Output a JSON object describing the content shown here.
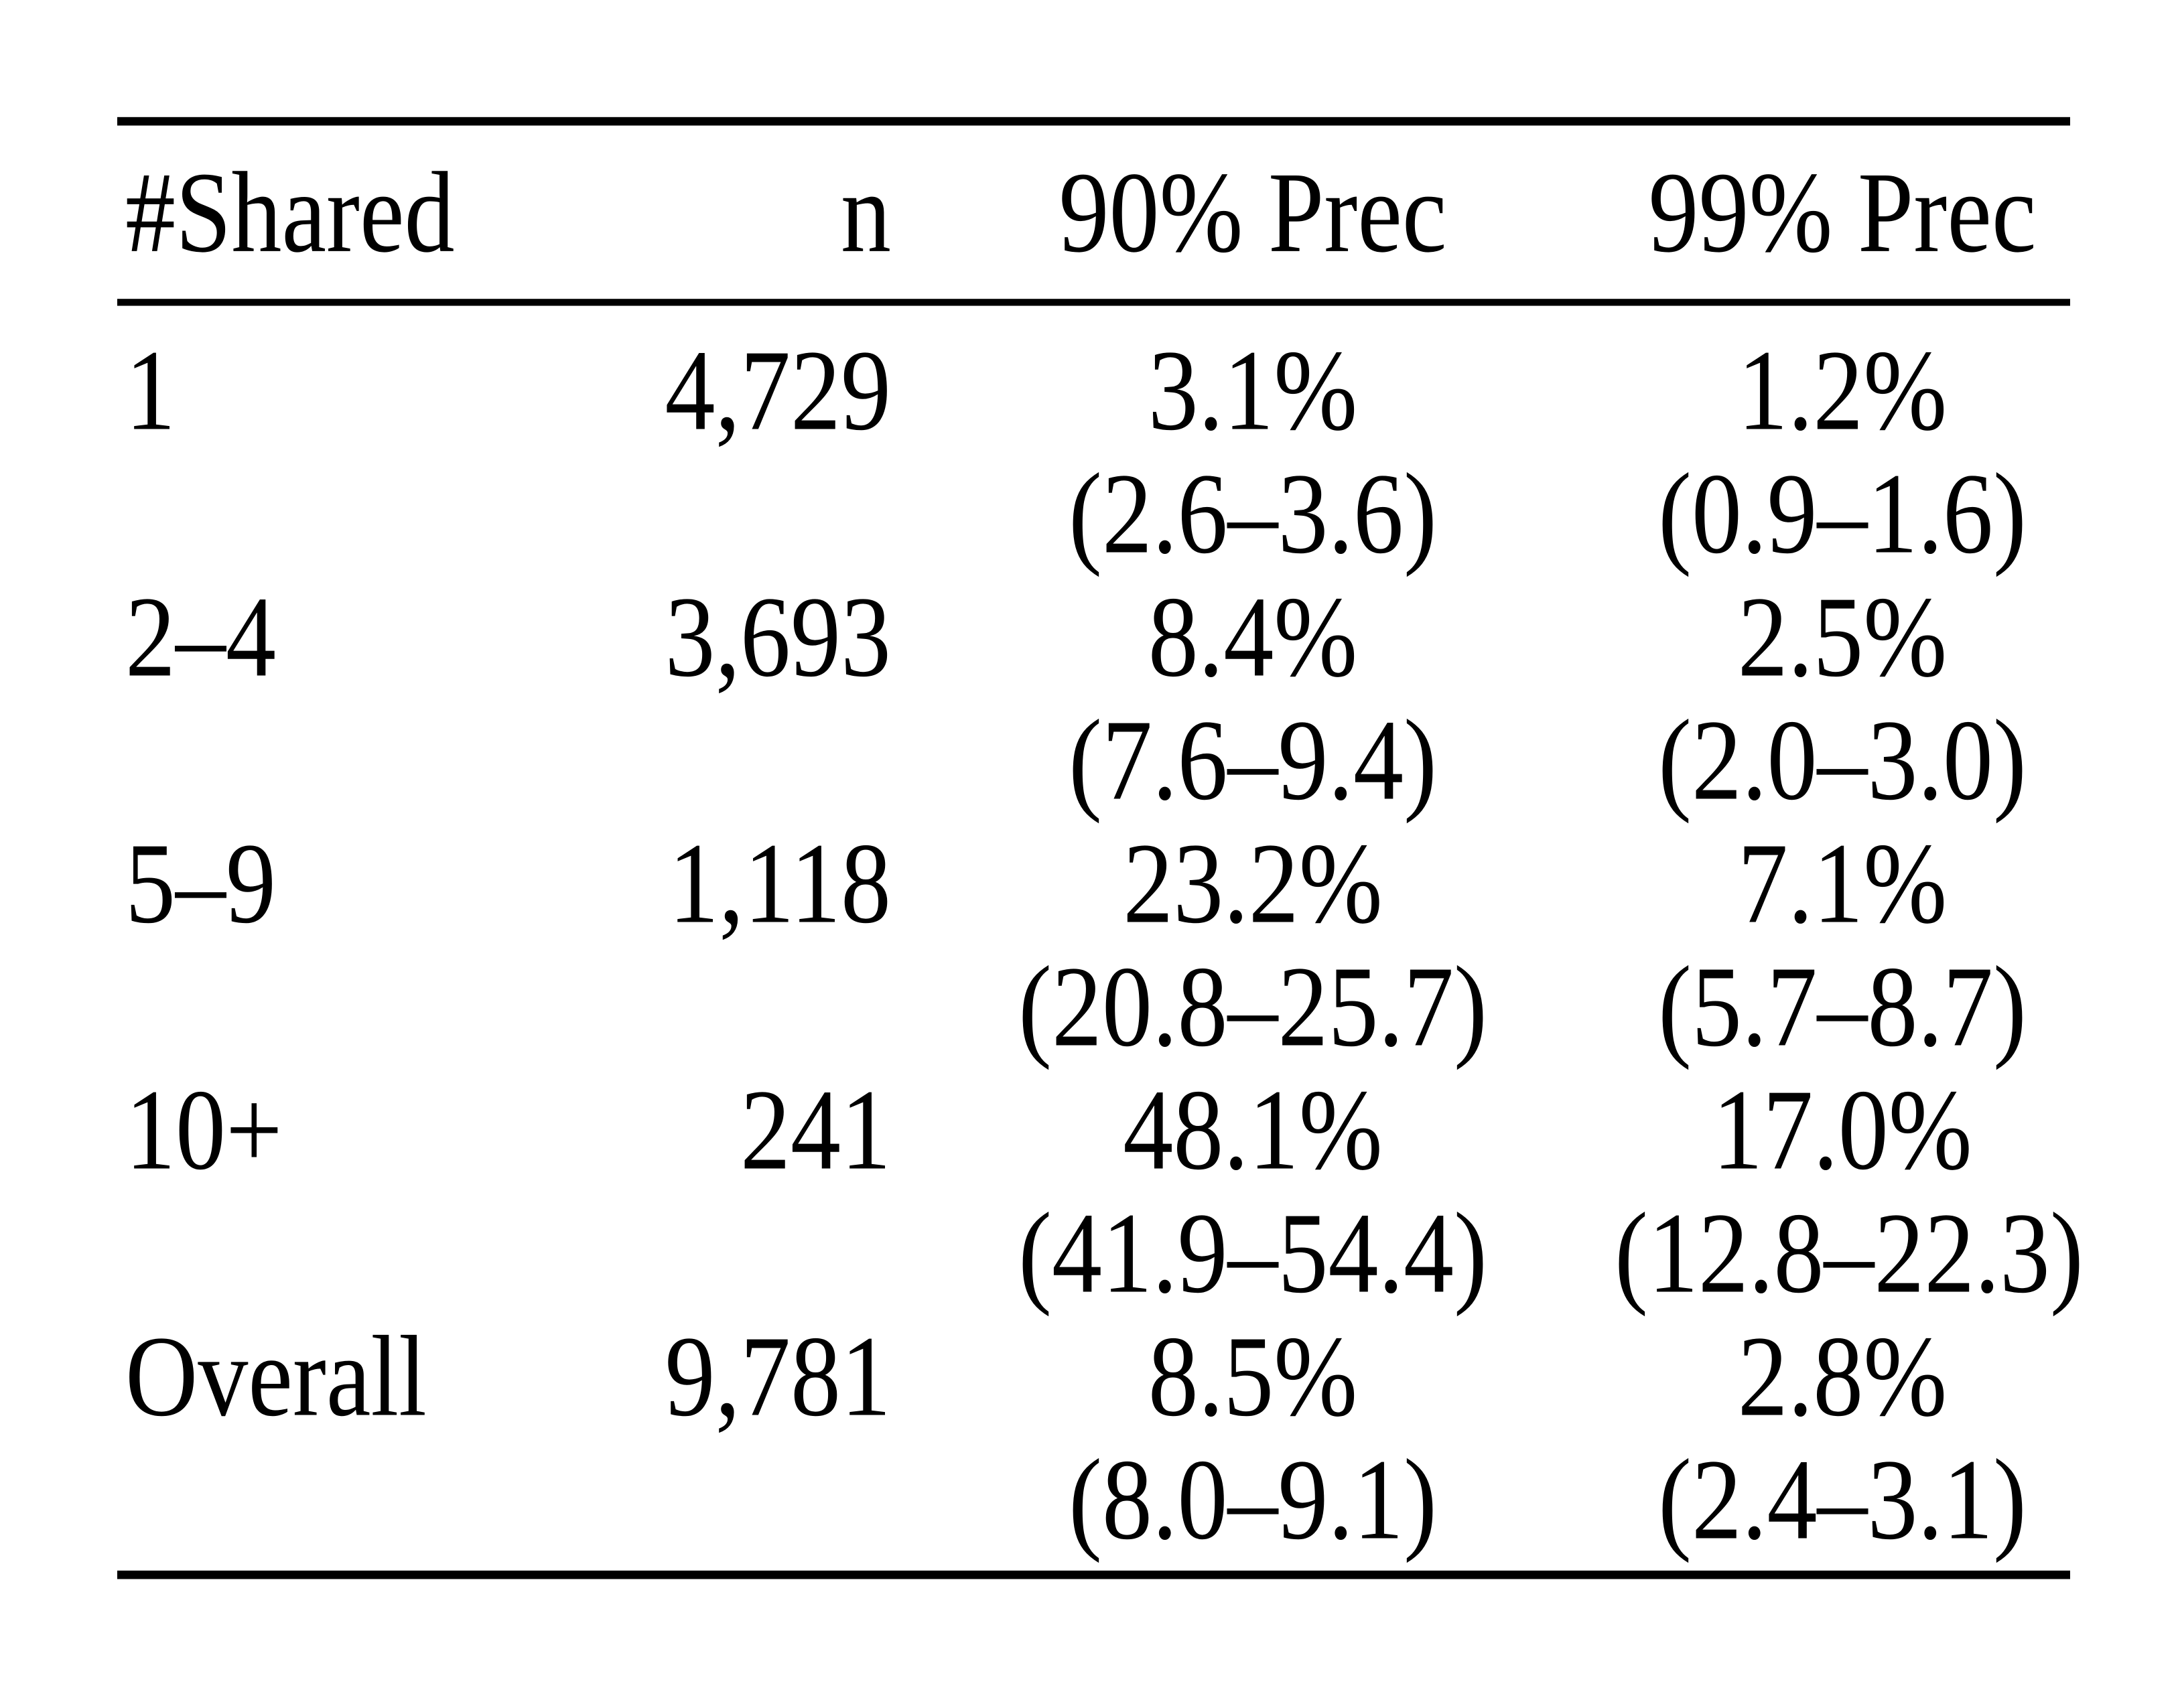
{
  "page": {
    "background_color": "#ffffff",
    "text_color": "#000000"
  },
  "table": {
    "columns": [
      "#Shared",
      "n",
      "90% Prec",
      "99% Prec"
    ],
    "rows": [
      {
        "shared": "1",
        "n": "4,729",
        "prec90": "3.1%",
        "prec90_ci": "(2.6–3.6)",
        "prec99": "1.2%",
        "prec99_ci": "(0.9–1.6)"
      },
      {
        "shared": "2–4",
        "n": "3,693",
        "prec90": "8.4%",
        "prec90_ci": "(7.6–9.4)",
        "prec99": "2.5%",
        "prec99_ci": "(2.0–3.0)"
      },
      {
        "shared": "5–9",
        "n": "1,118",
        "prec90": "23.2%",
        "prec90_ci": "(20.8–25.7)",
        "prec99": "7.1%",
        "prec99_ci": "(5.7–8.7)"
      },
      {
        "shared": "10+",
        "n": "241",
        "prec90": "48.1%",
        "prec90_ci": "(41.9–54.4)",
        "prec99": "17.0%",
        "prec99_ci": "(12.8–22.3)"
      },
      {
        "shared": "Overall",
        "n": "9,781",
        "prec90": "8.5%",
        "prec90_ci": "(8.0–9.1)",
        "prec99": "2.8%",
        "prec99_ci": "(2.4–3.1)"
      }
    ]
  },
  "chart_data": {
    "type": "table",
    "columns": [
      "#Shared",
      "n",
      "90% Prec",
      "99% Prec"
    ],
    "rows": [
      [
        "1",
        "4,729",
        "3.1% (2.6–3.6)",
        "1.2% (0.9–1.6)"
      ],
      [
        "2–4",
        "3,693",
        "8.4% (7.6–9.4)",
        "2.5% (2.0–3.0)"
      ],
      [
        "5–9",
        "1,118",
        "23.2% (20.8–25.7)",
        "7.1% (5.7–8.7)"
      ],
      [
        "10+",
        "241",
        "48.1% (41.9–54.4)",
        "17.0% (12.8–22.3)"
      ],
      [
        "Overall",
        "9,781",
        "8.5% (8.0–9.1)",
        "2.8% (2.4–3.1)"
      ]
    ]
  }
}
